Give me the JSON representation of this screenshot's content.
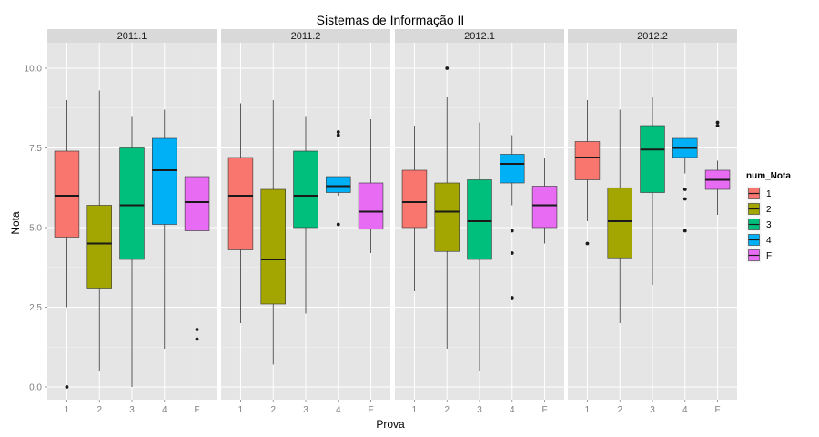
{
  "chart_data": {
    "type": "boxplot",
    "title": "Sistemas de Informação II",
    "xlabel": "Prova",
    "ylabel": "Nota",
    "ylim": [
      -0.4,
      10.8
    ],
    "yticks": [
      "0.0",
      "2.5",
      "5.0",
      "7.5",
      "10.0"
    ],
    "ytick_values": [
      0,
      2.5,
      5,
      7.5,
      10
    ],
    "categories": [
      "1",
      "2",
      "3",
      "4",
      "F"
    ],
    "legend": {
      "title": "num_Nota",
      "placement": "right",
      "items": [
        "1",
        "2",
        "3",
        "4",
        "F"
      ]
    },
    "colors": [
      "#F8766D",
      "#A3A500",
      "#00BF7D",
      "#00B0F6",
      "#E76BF3"
    ],
    "panels": [
      {
        "label": "2011.1",
        "boxes": [
          {
            "cat": "1",
            "lw": 2.5,
            "q1": 4.7,
            "med": 6.0,
            "q3": 7.4,
            "uw": 9.0,
            "out": [
              0.0
            ]
          },
          {
            "cat": "2",
            "lw": 0.5,
            "q1": 3.1,
            "med": 4.5,
            "q3": 5.7,
            "uw": 9.3,
            "out": []
          },
          {
            "cat": "3",
            "lw": 0.0,
            "q1": 4.0,
            "med": 5.7,
            "q3": 7.5,
            "uw": 8.5,
            "out": []
          },
          {
            "cat": "4",
            "lw": 1.2,
            "q1": 5.1,
            "med": 6.8,
            "q3": 7.8,
            "uw": 8.7,
            "out": []
          },
          {
            "cat": "F",
            "lw": 3.0,
            "q1": 4.9,
            "med": 5.8,
            "q3": 6.6,
            "uw": 7.9,
            "out": [
              1.8,
              1.5
            ]
          }
        ]
      },
      {
        "label": "2011.2",
        "boxes": [
          {
            "cat": "1",
            "lw": 2.0,
            "q1": 4.3,
            "med": 6.0,
            "q3": 7.2,
            "uw": 8.9,
            "out": []
          },
          {
            "cat": "2",
            "lw": 0.7,
            "q1": 2.6,
            "med": 4.0,
            "q3": 6.2,
            "uw": 9.0,
            "out": []
          },
          {
            "cat": "3",
            "lw": 2.3,
            "q1": 5.0,
            "med": 6.0,
            "q3": 7.4,
            "uw": 8.5,
            "out": []
          },
          {
            "cat": "4",
            "lw": 6.0,
            "q1": 6.1,
            "med": 6.3,
            "q3": 6.6,
            "uw": 6.6,
            "out": [
              8.0,
              7.9,
              5.1
            ]
          },
          {
            "cat": "F",
            "lw": 4.2,
            "q1": 4.95,
            "med": 5.5,
            "q3": 6.4,
            "uw": 8.4,
            "out": []
          }
        ]
      },
      {
        "label": "2012.1",
        "boxes": [
          {
            "cat": "1",
            "lw": 3.0,
            "q1": 5.0,
            "med": 5.8,
            "q3": 6.8,
            "uw": 8.2,
            "out": []
          },
          {
            "cat": "2",
            "lw": 1.2,
            "q1": 4.25,
            "med": 5.5,
            "q3": 6.4,
            "uw": 9.1,
            "out": [
              10.0
            ]
          },
          {
            "cat": "3",
            "lw": 0.5,
            "q1": 4.0,
            "med": 5.2,
            "q3": 6.5,
            "uw": 8.3,
            "out": []
          },
          {
            "cat": "4",
            "lw": 5.7,
            "q1": 6.4,
            "med": 7.0,
            "q3": 7.3,
            "uw": 7.9,
            "out": [
              4.9,
              4.2,
              2.8
            ]
          },
          {
            "cat": "F",
            "lw": 4.5,
            "q1": 5.0,
            "med": 5.7,
            "q3": 6.3,
            "uw": 7.2,
            "out": []
          }
        ]
      },
      {
        "label": "2012.2",
        "boxes": [
          {
            "cat": "1",
            "lw": 5.2,
            "q1": 6.5,
            "med": 7.2,
            "q3": 7.7,
            "uw": 9.0,
            "out": [
              4.5
            ]
          },
          {
            "cat": "2",
            "lw": 2.0,
            "q1": 4.05,
            "med": 5.2,
            "q3": 6.25,
            "uw": 8.7,
            "out": []
          },
          {
            "cat": "3",
            "lw": 3.2,
            "q1": 6.1,
            "med": 7.45,
            "q3": 8.2,
            "uw": 9.1,
            "out": []
          },
          {
            "cat": "4",
            "lw": 6.7,
            "q1": 7.2,
            "med": 7.5,
            "q3": 7.8,
            "uw": 7.8,
            "out": [
              6.2,
              5.9,
              4.9
            ]
          },
          {
            "cat": "F",
            "lw": 5.4,
            "q1": 6.2,
            "med": 6.5,
            "q3": 6.8,
            "uw": 7.1,
            "out": [
              8.3,
              8.2
            ]
          }
        ]
      }
    ]
  }
}
